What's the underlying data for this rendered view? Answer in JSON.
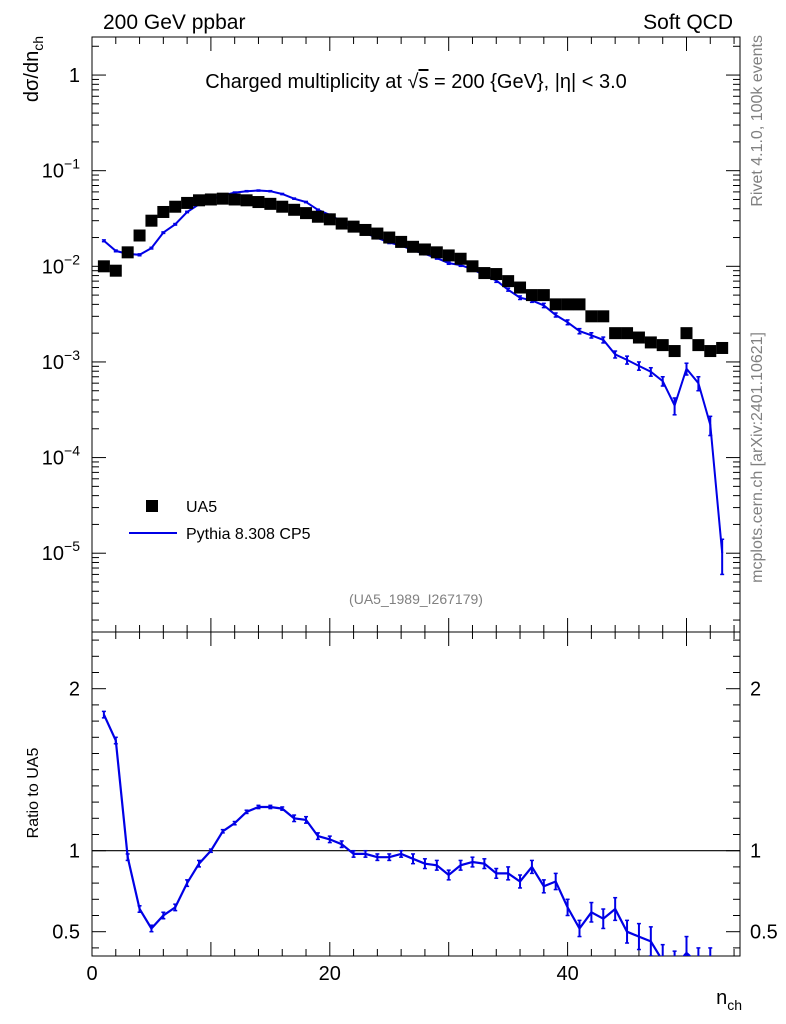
{
  "header": {
    "left": "200 GeV ppbar",
    "right": "Soft QCD"
  },
  "side_text": {
    "rivet": "Rivet 4.1.0,  100k events",
    "mcplots": "mcplots.cern.ch [arXiv:2401.10621]"
  },
  "title": {
    "prefix": "Charged multiplicity at ",
    "sqrt": "√",
    "s": "s",
    "suffix": " = 200 {GeV}, |η| < 3.0"
  },
  "watermark": "(UA5_1989_I267179)",
  "legend": {
    "data": "UA5",
    "mc": "Pythia 8.308 CP5"
  },
  "colors": {
    "data": "#000000",
    "mc": "#0000e6",
    "grey": "#808080"
  },
  "chart_data": [
    {
      "type": "scatter",
      "name": "main",
      "ylabel": "dσ/dn_ch",
      "ylabel_main": "dσ/dn",
      "ylabel_sub": "ch",
      "yscale": "log",
      "ylim": [
        1.5e-06,
        2.5
      ],
      "xlim": [
        0,
        54.5
      ],
      "yticks": [
        {
          "label": "1",
          "value": 1
        },
        {
          "label": "10",
          "sup": "−1",
          "value": 0.1
        },
        {
          "label": "10",
          "sup": "−2",
          "value": 0.01
        },
        {
          "label": "10",
          "sup": "−3",
          "value": 0.001
        },
        {
          "label": "10",
          "sup": "−4",
          "value": 0.0001
        },
        {
          "label": "10",
          "sup": "−5",
          "value": 1e-05
        }
      ],
      "series": [
        {
          "name": "UA5",
          "style": "markers",
          "x": [
            1,
            2,
            3,
            4,
            5,
            6,
            7,
            8,
            9,
            10,
            11,
            12,
            13,
            14,
            15,
            16,
            17,
            18,
            19,
            20,
            21,
            22,
            23,
            24,
            25,
            26,
            27,
            28,
            29,
            30,
            31,
            32,
            33,
            34,
            35,
            36,
            37,
            38,
            39,
            40,
            41,
            42,
            43,
            44,
            45,
            46,
            47,
            48,
            49,
            50,
            51,
            52,
            53
          ],
          "y": [
            0.01,
            0.009,
            0.014,
            0.021,
            0.03,
            0.037,
            0.042,
            0.046,
            0.049,
            0.05,
            0.051,
            0.05,
            0.049,
            0.047,
            0.045,
            0.042,
            0.039,
            0.036,
            0.033,
            0.031,
            0.028,
            0.026,
            0.024,
            0.022,
            0.02,
            0.018,
            0.016,
            0.015,
            0.014,
            0.013,
            0.012,
            0.01,
            0.0085,
            0.0083,
            0.007,
            0.006,
            0.005,
            0.005,
            0.004,
            0.004,
            0.004,
            0.003,
            0.003,
            0.002,
            0.002,
            0.0018,
            0.0016,
            0.0015,
            0.0013,
            0.002,
            0.0015,
            0.0013,
            0.0014
          ]
        },
        {
          "name": "Pythia 8.308 CP5",
          "style": "line",
          "x": [
            1,
            2,
            3,
            4,
            5,
            6,
            7,
            8,
            9,
            10,
            11,
            12,
            13,
            14,
            15,
            16,
            17,
            18,
            19,
            20,
            21,
            22,
            23,
            24,
            25,
            26,
            27,
            28,
            29,
            30,
            31,
            32,
            33,
            34,
            35,
            36,
            37,
            38,
            39,
            40,
            41,
            42,
            43,
            44,
            45,
            46,
            47,
            48,
            49,
            50,
            51,
            52,
            53
          ],
          "y": [
            0.0185,
            0.0145,
            0.0135,
            0.0132,
            0.0155,
            0.0225,
            0.0275,
            0.037,
            0.0445,
            0.05,
            0.055,
            0.059,
            0.061,
            0.062,
            0.061,
            0.057,
            0.051,
            0.047,
            0.039,
            0.0345,
            0.0295,
            0.0252,
            0.0222,
            0.0198,
            0.0177,
            0.0165,
            0.0147,
            0.0135,
            0.0122,
            0.0108,
            0.0103,
            0.0093,
            0.0081,
            0.0071,
            0.0057,
            0.0047,
            0.0044,
            0.0039,
            0.0031,
            0.0026,
            0.0021,
            0.0019,
            0.0017,
            0.0012,
            0.00105,
            0.00091,
            0.00079,
            0.00063,
            0.00035,
            0.00085,
            0.0006,
            0.00022,
            1e-05
          ],
          "err": [
            0.0004,
            0.0003,
            0.0003,
            0.0003,
            0.0003,
            0.0004,
            0.0005,
            0.0006,
            0.0007,
            0.0007,
            0.0008,
            0.0008,
            0.0008,
            0.0008,
            0.0008,
            0.0008,
            0.0007,
            0.0007,
            0.0006,
            0.0006,
            0.0005,
            0.0005,
            0.0004,
            0.0004,
            0.0004,
            0.0004,
            0.0003,
            0.0003,
            0.0003,
            0.0003,
            0.0003,
            0.0003,
            0.0003,
            0.0003,
            0.0002,
            0.0002,
            0.0002,
            0.0002,
            0.00015,
            0.00015,
            0.00013,
            0.00012,
            0.00012,
            0.0001,
            0.0001,
            9e-05,
            8e-05,
            7e-05,
            7e-05,
            0.00012,
            0.0001,
            5e-05,
            4e-06
          ]
        }
      ]
    },
    {
      "type": "line",
      "name": "ratio",
      "ylabel": "Ratio to UA5",
      "xlabel": "n_ch",
      "xlabel_main": "n",
      "xlabel_sub": "ch",
      "ylim": [
        0.35,
        2.35
      ],
      "xlim": [
        0,
        54.5
      ],
      "reference": 1,
      "yticks": [
        {
          "label": "2",
          "value": 2
        },
        {
          "label": "1",
          "value": 1
        },
        {
          "label": "0.5",
          "value": 0.5
        }
      ],
      "xticks": [
        {
          "label": "0",
          "value": 0
        },
        {
          "label": "20",
          "value": 20
        },
        {
          "label": "40",
          "value": 40
        }
      ],
      "series": [
        {
          "name": "Pythia 8.308 CP5 / UA5",
          "x": [
            1,
            2,
            3,
            4,
            5,
            6,
            7,
            8,
            9,
            10,
            11,
            12,
            13,
            14,
            15,
            16,
            17,
            18,
            19,
            20,
            21,
            22,
            23,
            24,
            25,
            26,
            27,
            28,
            29,
            30,
            31,
            32,
            33,
            34,
            35,
            36,
            37,
            38,
            39,
            40,
            41,
            42,
            43,
            44,
            45,
            46,
            47,
            48,
            49,
            50,
            51,
            52
          ],
          "y": [
            1.84,
            1.68,
            0.96,
            0.64,
            0.52,
            0.6,
            0.65,
            0.8,
            0.92,
            1.0,
            1.12,
            1.17,
            1.24,
            1.27,
            1.27,
            1.26,
            1.2,
            1.19,
            1.09,
            1.07,
            1.04,
            0.98,
            0.98,
            0.96,
            0.96,
            0.98,
            0.95,
            0.92,
            0.91,
            0.85,
            0.91,
            0.93,
            0.92,
            0.86,
            0.86,
            0.81,
            0.9,
            0.78,
            0.81,
            0.65,
            0.52,
            0.62,
            0.58,
            0.64,
            0.5,
            0.47,
            0.44,
            0.32,
            0.28,
            0.37,
            0.3,
            0.3
          ],
          "err": [
            0.02,
            0.02,
            0.02,
            0.02,
            0.02,
            0.02,
            0.02,
            0.02,
            0.02,
            0.01,
            0.01,
            0.01,
            0.01,
            0.01,
            0.01,
            0.01,
            0.02,
            0.02,
            0.02,
            0.02,
            0.02,
            0.02,
            0.02,
            0.02,
            0.02,
            0.02,
            0.03,
            0.03,
            0.03,
            0.03,
            0.03,
            0.03,
            0.03,
            0.03,
            0.04,
            0.04,
            0.04,
            0.04,
            0.05,
            0.05,
            0.05,
            0.06,
            0.06,
            0.07,
            0.07,
            0.08,
            0.09,
            0.1,
            0.1,
            0.1,
            0.1,
            0.1
          ]
        }
      ]
    }
  ]
}
